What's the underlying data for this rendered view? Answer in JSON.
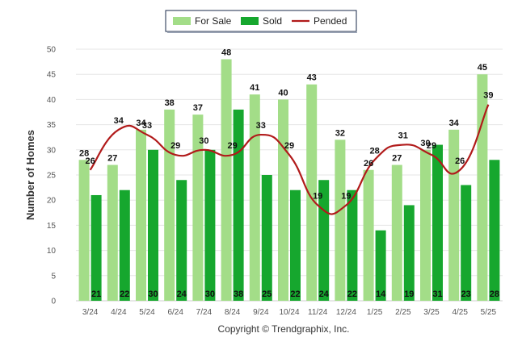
{
  "chart_data": {
    "type": "bar",
    "categories": [
      "3/24",
      "4/24",
      "5/24",
      "6/24",
      "7/24",
      "8/24",
      "9/24",
      "10/24",
      "11/24",
      "12/24",
      "1/25",
      "2/25",
      "3/25",
      "4/25",
      "5/25"
    ],
    "series": [
      {
        "name": "For Sale",
        "type": "bar",
        "color": "#a3dd88",
        "values": [
          28,
          27,
          34,
          38,
          37,
          48,
          41,
          40,
          43,
          32,
          26,
          27,
          30,
          34,
          45
        ]
      },
      {
        "name": "Sold",
        "type": "bar",
        "color": "#16a72e",
        "values": [
          21,
          22,
          30,
          24,
          30,
          38,
          25,
          22,
          24,
          22,
          14,
          19,
          31,
          23,
          28
        ]
      },
      {
        "name": "Pended",
        "type": "line",
        "color": "#b11a1a",
        "values": [
          26,
          34,
          33,
          29,
          30,
          29,
          33,
          29,
          19,
          19,
          28,
          31,
          29,
          26,
          39
        ]
      }
    ],
    "ylabel": "Number of Homes",
    "xlabel": "",
    "ylim": [
      0,
      50
    ],
    "yticks": [
      0,
      5,
      10,
      15,
      20,
      25,
      30,
      35,
      40,
      45,
      50
    ],
    "grid": true,
    "legend_position": "top-center"
  },
  "credit": "Copyright © Trendgraphix, Inc."
}
